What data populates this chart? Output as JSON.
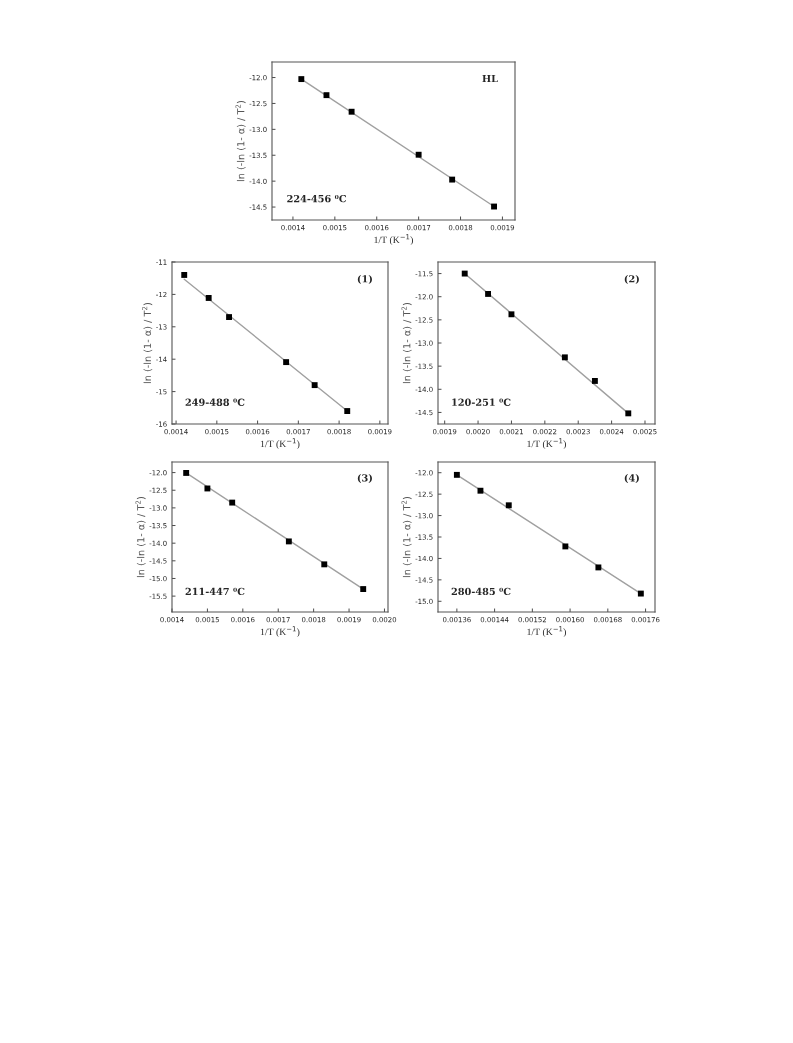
{
  "chart_data": [
    {
      "type": "scatter",
      "xlabel": "1/T (K$^{−1}$)",
      "ylabel": "ln (-ln (1- α) / T$^{2}$)",
      "annotations": [
        "HL",
        "224-456 ⁰C"
      ],
      "xlim": [
        0.00135,
        0.00193
      ],
      "ylim": [
        -14.75,
        -11.7
      ],
      "xticks": [
        0.0014,
        0.0015,
        0.0016,
        0.0017,
        0.0018,
        0.0019
      ],
      "yticks": [
        {
          "value": -12,
          "label": "-12.0"
        },
        -12.5,
        {
          "value": -13,
          "label": "-13.0"
        },
        -13.5,
        {
          "value": -14,
          "label": "-14.0"
        },
        -14.5
      ],
      "grid": false,
      "legend": false,
      "series": [
        {
          "marker": "square",
          "color": "#000000",
          "x": [
            0.00142,
            0.00148,
            0.00154,
            0.0017,
            0.00178,
            0.00188
          ],
          "values": [
            -12.03,
            -12.34,
            -12.66,
            -13.49,
            -13.97,
            -14.49
          ]
        },
        {
          "type": "line",
          "color": "#a0a0a0",
          "x": [
            0.00142,
            0.00188
          ],
          "values": [
            -12.03,
            -14.49
          ]
        }
      ]
    },
    {
      "type": "scatter",
      "xlabel": "1/T (K$^{−1}$)",
      "ylabel": "ln (-ln (1- α) / T$^{2}$)",
      "annotations": [
        "(1)",
        "249-488 ⁰C"
      ],
      "xlim": [
        0.00139,
        0.00192
      ],
      "ylim": [
        -16,
        -11
      ],
      "xticks": [
        0.0014,
        0.0015,
        0.0016,
        0.0017,
        0.0018,
        0.0019
      ],
      "yticks": [
        -11,
        -12,
        -13,
        -14,
        -15,
        -16
      ],
      "grid": false,
      "legend": false,
      "series": [
        {
          "marker": "square",
          "color": "#000000",
          "x": [
            0.00142,
            0.00148,
            0.00153,
            0.00167,
            0.00174,
            0.00182
          ],
          "values": [
            -11.4,
            -12.11,
            -12.7,
            -14.09,
            -14.8,
            -15.6
          ]
        },
        {
          "type": "line",
          "color": "#a0a0a0",
          "x": [
            0.00142,
            0.00182
          ],
          "values": [
            -11.53,
            -15.6
          ]
        }
      ]
    },
    {
      "type": "scatter",
      "xlabel": "1/T (K$^{−1}$)",
      "ylabel": "ln (-ln (1- α) / T$^{2}$)",
      "annotations": [
        "(2)",
        "120-251 ⁰C"
      ],
      "xlim": [
        0.00188,
        0.00253
      ],
      "ylim": [
        -14.75,
        -11.25
      ],
      "xticks": [
        0.0019,
        {
          "value": 0.002,
          "label": "0.0020"
        },
        0.0021,
        0.0022,
        0.0023,
        0.0024,
        0.0025
      ],
      "yticks": [
        -11.5,
        {
          "value": -12,
          "label": "-12.0"
        },
        -12.5,
        {
          "value": -13,
          "label": "-13.0"
        },
        -13.5,
        {
          "value": -14,
          "label": "-14.0"
        },
        -14.5
      ],
      "grid": false,
      "legend": false,
      "series": [
        {
          "marker": "square",
          "color": "#000000",
          "x": [
            0.00196,
            0.00203,
            0.0021,
            0.00226,
            0.00235,
            0.00245
          ],
          "values": [
            -11.5,
            -11.94,
            -12.38,
            -13.31,
            -13.82,
            -14.52
          ]
        },
        {
          "type": "line",
          "color": "#a0a0a0",
          "x": [
            0.00196,
            0.00245
          ],
          "values": [
            -11.5,
            -14.52
          ]
        }
      ]
    },
    {
      "type": "scatter",
      "xlabel": "1/T (K$^{−1}$)",
      "ylabel": "ln (-ln (1- α) / T$^{2}$)",
      "annotations": [
        "(3)",
        "211-447 ⁰C"
      ],
      "xlim": [
        0.0014,
        0.00201
      ],
      "ylim": [
        -15.95,
        -11.7
      ],
      "xticks": [
        0.0014,
        0.0015,
        0.0016,
        0.0017,
        0.0018,
        0.0019,
        {
          "value": 0.002,
          "label": "0.0020"
        }
      ],
      "yticks": [
        {
          "value": -12,
          "label": "-12.0"
        },
        -12.5,
        {
          "value": -13,
          "label": "-13.0"
        },
        -13.5,
        {
          "value": -14,
          "label": "-14.0"
        },
        -14.5,
        {
          "value": -15,
          "label": "-15.0"
        },
        -15.5
      ],
      "grid": false,
      "legend": false,
      "series": [
        {
          "marker": "square",
          "color": "#000000",
          "x": [
            0.00144,
            0.0015,
            0.00157,
            0.00173,
            0.00183,
            0.00194
          ],
          "values": [
            -12.01,
            -12.45,
            -12.85,
            -13.95,
            -14.6,
            -15.3
          ]
        },
        {
          "type": "line",
          "color": "#a0a0a0",
          "x": [
            0.00144,
            0.00194
          ],
          "values": [
            -12.01,
            -15.3
          ]
        }
      ]
    },
    {
      "type": "scatter",
      "xlabel": "1/T (K$^{−1}$)",
      "ylabel": "ln (-ln (1- α) / T$^{2}$)",
      "annotations": [
        "(4)",
        "280-485 ⁰C"
      ],
      "xlim": [
        0.00132,
        0.00178
      ],
      "ylim": [
        -15.25,
        -11.75
      ],
      "xticks": [
        {
          "value": 0.00136,
          "label": "0.00136"
        },
        {
          "value": 0.00144,
          "label": "0.00144"
        },
        {
          "value": 0.00152,
          "label": "0.00152"
        },
        {
          "value": 0.0016,
          "label": "0.00160"
        },
        {
          "value": 0.00168,
          "label": "0.00168"
        },
        {
          "value": 0.00176,
          "label": "0.00176"
        }
      ],
      "yticks": [
        {
          "value": -12,
          "label": "-12.0"
        },
        -12.5,
        {
          "value": -13,
          "label": "-13.0"
        },
        -13.5,
        {
          "value": -14,
          "label": "-14.0"
        },
        -14.5,
        {
          "value": -15,
          "label": "-15.0"
        }
      ],
      "grid": false,
      "legend": false,
      "series": [
        {
          "marker": "square",
          "color": "#000000",
          "x": [
            0.00136,
            0.00141,
            0.00147,
            0.00159,
            0.00166,
            0.00175
          ],
          "values": [
            -12.05,
            -12.42,
            -12.76,
            -13.72,
            -14.21,
            -14.82
          ]
        },
        {
          "type": "line",
          "color": "#a0a0a0",
          "x": [
            0.00136,
            0.00175
          ],
          "values": [
            -12.05,
            -14.82
          ]
        }
      ]
    }
  ]
}
